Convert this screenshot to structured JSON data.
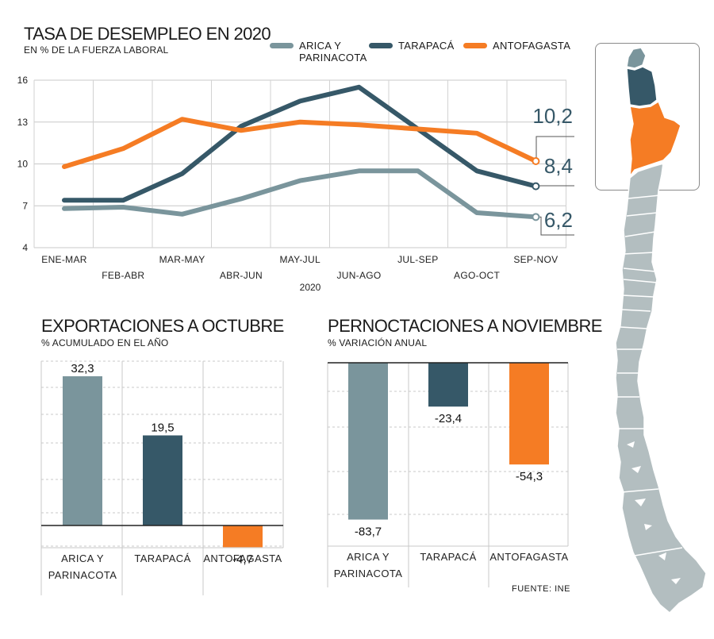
{
  "colors": {
    "arica": "#7a959c",
    "tarapaca": "#365868",
    "antofagasta": "#f57c24",
    "grid": "#c8c8c8",
    "map_other": "#b3bec0"
  },
  "line_chart": {
    "title": "TASA DE DESEMPLEO EN 2020",
    "subtitle": "EN % DE LA FUERZA LABORAL"
  },
  "legend": [
    {
      "label_line1": "ARICA Y",
      "label_line2": "PARINACOTA",
      "color": "#7a959c"
    },
    {
      "label_line1": "TARAPACÁ",
      "label_line2": "",
      "color": "#365868"
    },
    {
      "label_line1": "ANTOFAGASTA",
      "label_line2": "",
      "color": "#f57c24"
    }
  ],
  "exports_chart": {
    "title": "EXPORTACIONES A OCTUBRE",
    "subtitle": "% ACUMULADO EN EL AÑO"
  },
  "nights_chart": {
    "title": "PERNOCTACIONES A NOVIEMBRE",
    "subtitle": "% VARIACIÓN ANUAL"
  },
  "source": "FUENTE: INE",
  "chart_data": [
    {
      "type": "line",
      "title": "TASA DE DESEMPLEO EN 2020",
      "subtitle": "EN % DE LA FUERZA LABORAL",
      "xlabel": "2020",
      "ylabel": "",
      "ylim": [
        4,
        16
      ],
      "yticks": [
        4,
        7,
        10,
        13,
        16
      ],
      "grid": true,
      "legend_position": "top",
      "categories": [
        "ENE-MAR",
        "FEB-ABR",
        "MAR-MAY",
        "ABR-JUN",
        "MAY-JUL",
        "JUN-AGO",
        "JUL-SEP",
        "AGO-OCT",
        "SEP-NOV"
      ],
      "series": [
        {
          "name": "ARICA Y PARINACOTA",
          "color": "#7a959c",
          "values": [
            6.8,
            6.9,
            6.4,
            7.5,
            8.8,
            9.5,
            9.5,
            6.5,
            6.2
          ],
          "end_label": "6,2"
        },
        {
          "name": "TARAPACÁ",
          "color": "#365868",
          "values": [
            7.4,
            7.4,
            9.3,
            12.7,
            14.5,
            15.5,
            12.5,
            9.5,
            8.4
          ],
          "end_label": "8,4"
        },
        {
          "name": "ANTOFAGASTA",
          "color": "#f57c24",
          "values": [
            9.8,
            11.1,
            13.2,
            12.4,
            13.0,
            12.8,
            12.5,
            12.2,
            10.2
          ],
          "end_label": "10,2"
        }
      ]
    },
    {
      "type": "bar",
      "title": "EXPORTACIONES A OCTUBRE",
      "subtitle": "% ACUMULADO EN EL AÑO",
      "ylim": [
        -10,
        40
      ],
      "grid": true,
      "categories": [
        "ARICA Y PARINACOTA",
        "TARAPACÁ",
        "ANTOFAGASTA"
      ],
      "category_lines": [
        [
          "ARICA Y",
          "PARINACOTA"
        ],
        [
          "TARAPACÁ"
        ],
        [
          "ANTOFAGASTA"
        ]
      ],
      "values": [
        32.3,
        19.5,
        -4.7
      ],
      "value_labels": [
        "32,3",
        "19,5",
        "-4,7"
      ],
      "colors": [
        "#7a959c",
        "#365868",
        "#f57c24"
      ]
    },
    {
      "type": "bar",
      "title": "PERNOCTACIONES A NOVIEMBRE",
      "subtitle": "% VARIACIÓN ANUAL",
      "ylim": [
        -100,
        0
      ],
      "grid": true,
      "categories": [
        "ARICA Y PARINACOTA",
        "TARAPACÁ",
        "ANTOFAGASTA"
      ],
      "category_lines": [
        [
          "ARICA Y",
          "PARINACOTA"
        ],
        [
          "TARAPACÁ"
        ],
        [
          "ANTOFAGASTA"
        ]
      ],
      "values": [
        -83.7,
        -23.4,
        -54.3
      ],
      "value_labels": [
        "-83,7",
        "-23,4",
        "-54,3"
      ],
      "colors": [
        "#7a959c",
        "#365868",
        "#f57c24"
      ]
    }
  ]
}
